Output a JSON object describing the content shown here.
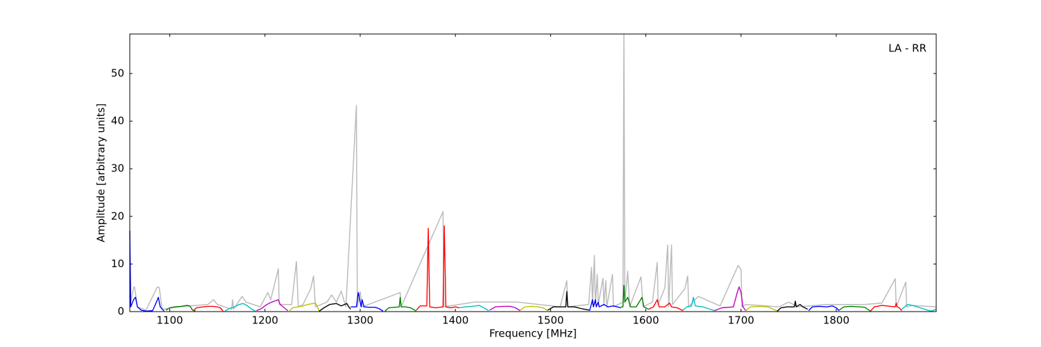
{
  "chart_data": {
    "type": "line",
    "x_label": "Frequency [MHz]",
    "y_label": "Amplitude [arbitrary units]",
    "annotation": "LA - RR",
    "xlim": [
      1058,
      1905
    ],
    "ylim": [
      0,
      58.3
    ],
    "xticks": [
      1100,
      1200,
      1300,
      1400,
      1500,
      1600,
      1700,
      1800
    ],
    "yticks": [
      0,
      10,
      20,
      30,
      40,
      50
    ],
    "series": [
      {
        "color": "#bbbbbb",
        "x": [
          1058,
          1059,
          1062,
          1063,
          1066,
          1075,
          1087,
          1089,
          1092,
          1110,
          1140,
          1146,
          1150,
          1165,
          1166,
          1167,
          1176,
          1180,
          1195,
          1203,
          1206,
          1214,
          1215,
          1228,
          1233,
          1235,
          1240,
          1248,
          1251,
          1253,
          1265,
          1270,
          1275,
          1280,
          1285,
          1296,
          1297,
          1300,
          1302,
          1342,
          1343,
          1387,
          1388,
          1420,
          1465,
          1510,
          1517,
          1518,
          1540,
          1543,
          1544,
          1546,
          1547,
          1549,
          1550,
          1555,
          1556,
          1558,
          1559,
          1565,
          1566,
          1576,
          1577,
          1578,
          1581,
          1583,
          1595,
          1597,
          1607,
          1612,
          1613,
          1620,
          1623,
          1624,
          1627,
          1628,
          1641,
          1644,
          1645,
          1655,
          1678,
          1697,
          1700,
          1701,
          1705,
          1740,
          1750,
          1760,
          1790,
          1830,
          1848,
          1862,
          1863,
          1873,
          1874,
          1880,
          1905
        ],
        "values": [
          17,
          2,
          5,
          5.2,
          1,
          0.3,
          5.2,
          5,
          0.5,
          1,
          1.5,
          2.5,
          1.5,
          0.5,
          2.5,
          0.5,
          3.2,
          2,
          1,
          4,
          2.5,
          9,
          1.5,
          1.5,
          10.5,
          1,
          1.5,
          4.8,
          7.5,
          1,
          2,
          3.5,
          2,
          4.3,
          1,
          43.3,
          1,
          4.2,
          1,
          4,
          1,
          21,
          1,
          2,
          2,
          1,
          6.5,
          1,
          1.5,
          9.3,
          1.5,
          11.8,
          1.5,
          7.8,
          1.5,
          7,
          1.5,
          6.5,
          1,
          7.8,
          1,
          2,
          58.3,
          2,
          8.5,
          1,
          7.3,
          1,
          2,
          10.3,
          1.5,
          5,
          14,
          1,
          14,
          1.5,
          4.8,
          7.5,
          1,
          3.2,
          1.2,
          9.7,
          8.8,
          1,
          1.5,
          1,
          2,
          1,
          1.5,
          1.5,
          1.8,
          6.9,
          1,
          6.2,
          1,
          1.3,
          1
        ]
      },
      {
        "color": "#0000ff",
        "x": [
          1058,
          1059,
          1062,
          1064,
          1066,
          1070,
          1075,
          1082,
          1086,
          1088,
          1090,
          1094
        ],
        "values": [
          17,
          1,
          2.5,
          3,
          1,
          0.3,
          0.1,
          0.2,
          2,
          3,
          1,
          0.1
        ]
      },
      {
        "color": "#008000",
        "x": [
          1096,
          1100,
          1105,
          1112,
          1118,
          1121,
          1124,
          1127
        ],
        "values": [
          0.3,
          0.8,
          1,
          1.1,
          1.3,
          1.2,
          0.3,
          0.1
        ]
      },
      {
        "color": "#ff0000",
        "x": [
          1125,
          1128,
          1135,
          1140,
          1145,
          1150,
          1153,
          1156
        ],
        "values": [
          0.2,
          0.8,
          1,
          1.1,
          1.1,
          1,
          0.8,
          0.1
        ]
      },
      {
        "color": "#00bfbf",
        "x": [
          1158,
          1162,
          1168,
          1173,
          1177,
          1181,
          1186,
          1190
        ],
        "values": [
          0.1,
          0.6,
          1,
          1.5,
          1.7,
          1.3,
          0.5,
          0.1
        ]
      },
      {
        "color": "#bf00bf",
        "x": [
          1191,
          1196,
          1202,
          1207,
          1214,
          1216,
          1219,
          1224
        ],
        "values": [
          0.2,
          0.6,
          1.5,
          2,
          2.5,
          1.5,
          1,
          0.2
        ]
      },
      {
        "color": "#bfbf00",
        "x": [
          1226,
          1229,
          1235,
          1240,
          1245,
          1253,
          1255,
          1257
        ],
        "values": [
          0.2,
          0.8,
          1,
          1.2,
          1.5,
          1.8,
          1,
          0.1
        ]
      },
      {
        "color": "#000000",
        "x": [
          1257,
          1262,
          1268,
          1275,
          1280,
          1286,
          1288,
          1290
        ],
        "values": [
          0.1,
          0.8,
          1.5,
          1.7,
          1.2,
          1.7,
          1,
          0.5
        ]
      },
      {
        "color": "#0000ff",
        "x": [
          1290,
          1296,
          1298,
          1301,
          1302,
          1304,
          1310,
          1316,
          1320,
          1324
        ],
        "values": [
          1,
          1,
          4,
          1,
          2.5,
          1,
          0.9,
          0.9,
          0.6,
          0.1
        ]
      },
      {
        "color": "#008000",
        "x": [
          1326,
          1330,
          1341,
          1342,
          1343,
          1348,
          1353,
          1359
        ],
        "values": [
          0.1,
          0.8,
          1,
          3,
          1,
          1,
          0.8,
          0.1
        ]
      },
      {
        "color": "#ff0000",
        "x": [
          1359,
          1363,
          1370,
          1371.5,
          1373,
          1380,
          1387,
          1388.3,
          1390,
          1395,
          1400,
          1404
        ],
        "values": [
          0.3,
          1.2,
          1.2,
          17.5,
          1,
          0.8,
          1,
          18,
          1,
          0.8,
          1,
          0.8
        ]
      },
      {
        "color": "#00bfbf",
        "x": [
          1404,
          1410,
          1418,
          1425,
          1430,
          1435
        ],
        "values": [
          0.8,
          1,
          1.1,
          1.3,
          0.8,
          0.2
        ]
      },
      {
        "color": "#bf00bf",
        "x": [
          1436,
          1442,
          1450,
          1458,
          1463,
          1468
        ],
        "values": [
          0.3,
          1,
          1.1,
          1.1,
          0.8,
          0.2
        ]
      },
      {
        "color": "#bfbf00",
        "x": [
          1468,
          1473,
          1480,
          1487,
          1492,
          1497
        ],
        "values": [
          0.3,
          1,
          1.1,
          1,
          0.8,
          0.2
        ]
      },
      {
        "color": "#000000",
        "x": [
          1497,
          1503,
          1510,
          1516,
          1517,
          1518,
          1525,
          1533,
          1541
        ],
        "values": [
          0.3,
          1,
          1,
          1,
          4.2,
          1,
          1,
          0.6,
          0.3
        ]
      },
      {
        "color": "#0000ff",
        "x": [
          1541,
          1544,
          1545,
          1547,
          1548,
          1550,
          1551,
          1556,
          1560,
          1566,
          1570,
          1574
        ],
        "values": [
          0.2,
          2.5,
          1,
          2.5,
          1,
          2,
          1,
          1.5,
          1,
          1.2,
          1,
          0.8
        ]
      },
      {
        "color": "#008000",
        "x": [
          1574,
          1576,
          1577,
          1578,
          1581,
          1584,
          1590,
          1596,
          1598,
          1603
        ],
        "values": [
          1,
          1,
          5.5,
          2,
          3,
          1,
          1,
          3,
          1,
          0.5
        ]
      },
      {
        "color": "#ff0000",
        "x": [
          1603,
          1608,
          1612,
          1614,
          1620,
          1625,
          1627,
          1633,
          1639
        ],
        "values": [
          0.5,
          1,
          2.5,
          1,
          1,
          1.8,
          1,
          0.8,
          0.2
        ]
      },
      {
        "color": "#00bfbf",
        "x": [
          1639,
          1643,
          1648,
          1650,
          1652,
          1660,
          1666,
          1672
        ],
        "values": [
          0.3,
          1,
          1.2,
          3,
          1.2,
          1,
          0.6,
          0.2
        ]
      },
      {
        "color": "#bf00bf",
        "x": [
          1672,
          1680,
          1692,
          1696,
          1698,
          1700,
          1702,
          1705
        ],
        "values": [
          0.2,
          0.8,
          1,
          4,
          5.2,
          4,
          1,
          0.2
        ]
      },
      {
        "color": "#bfbf00",
        "x": [
          1705,
          1710,
          1720,
          1728,
          1733,
          1738
        ],
        "values": [
          0.2,
          1,
          1.1,
          1,
          0.6,
          0.1
        ]
      },
      {
        "color": "#000000",
        "x": [
          1738,
          1742,
          1748,
          1756,
          1757,
          1758,
          1762,
          1765,
          1770
        ],
        "values": [
          0.1,
          0.8,
          1,
          1,
          2.2,
          1,
          1.5,
          1,
          0.5
        ]
      },
      {
        "color": "#0000ff",
        "x": [
          1771,
          1775,
          1782,
          1790,
          1796,
          1800,
          1803
        ],
        "values": [
          0.2,
          1,
          1.1,
          1,
          1.2,
          0.8,
          0.2
        ]
      },
      {
        "color": "#008000",
        "x": [
          1803,
          1808,
          1815,
          1825,
          1830,
          1836
        ],
        "values": [
          0.3,
          1,
          1.1,
          1,
          0.9,
          0.1
        ]
      },
      {
        "color": "#ff0000",
        "x": [
          1836,
          1840,
          1848,
          1862,
          1863,
          1864,
          1866,
          1869
        ],
        "values": [
          0.1,
          1,
          1.3,
          1,
          1.8,
          1,
          0.8,
          0.2
        ]
      },
      {
        "color": "#00bfbf",
        "x": [
          1869,
          1875,
          1880,
          1888,
          1896,
          1900,
          1905
        ],
        "values": [
          0.5,
          1.5,
          1.3,
          0.8,
          0.3,
          0.1,
          0.5
        ]
      }
    ]
  }
}
